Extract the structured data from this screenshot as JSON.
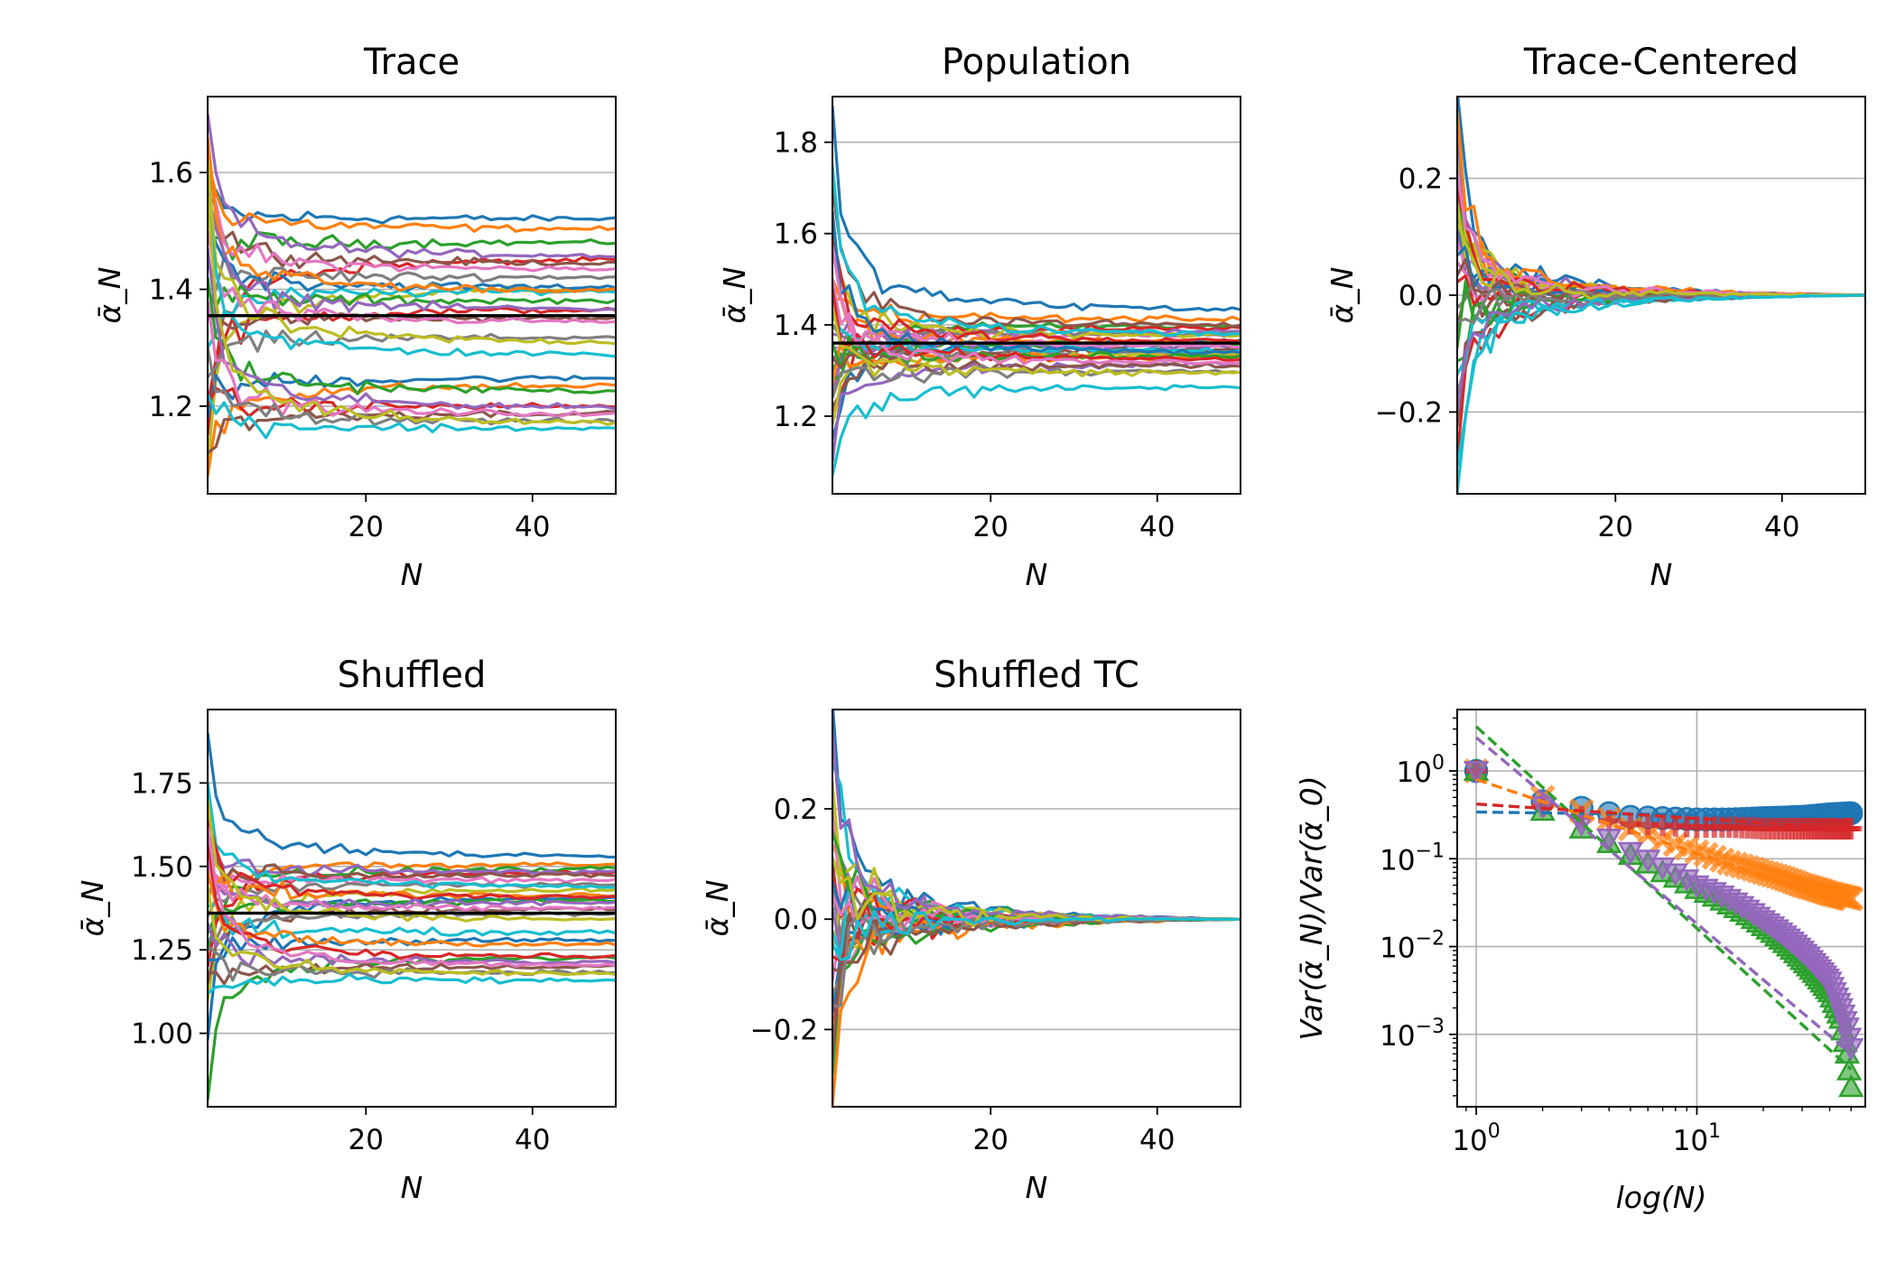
{
  "figure": {
    "layout": "2x3 grid of small-multiple line plots"
  },
  "colors": {
    "series": [
      "#1f77b4",
      "#ff7f0e",
      "#2ca02c",
      "#d62728",
      "#9467bd",
      "#8c564b",
      "#e377c2",
      "#7f7f7f",
      "#bcbd22",
      "#17becf"
    ],
    "reference_line": "#000000",
    "grid": "#b0b0b0"
  },
  "chart_data": [
    {
      "type": "line",
      "title": "Trace",
      "xlabel": "N",
      "ylabel": "ᾱ_N",
      "xlim": [
        1,
        50
      ],
      "ylim": [
        1.05,
        1.73
      ],
      "x_ticks": [
        20,
        40
      ],
      "x_tick_labels": [
        "20",
        "40"
      ],
      "y_ticks": [
        1.2,
        1.4,
        1.6
      ],
      "y_tick_labels": [
        "1.2",
        "1.4",
        "1.6"
      ],
      "grid": "y",
      "n_series": 30,
      "reference_line_y": 1.355,
      "series_final_values": [
        1.52,
        1.5,
        1.48,
        1.46,
        1.45,
        1.44,
        1.43,
        1.42,
        1.41,
        1.4,
        1.4,
        1.39,
        1.38,
        1.37,
        1.36,
        1.35,
        1.34,
        1.32,
        1.3,
        1.28,
        1.25,
        1.24,
        1.22,
        1.2,
        1.19,
        1.19,
        1.18,
        1.17,
        1.16,
        1.16
      ],
      "series_initial_values": [
        1.55,
        1.62,
        1.48,
        1.15,
        1.7,
        1.6,
        1.58,
        1.45,
        1.1,
        1.3,
        1.52,
        1.66,
        1.4,
        1.2,
        1.57,
        1.35,
        1.5,
        1.25,
        1.62,
        1.55,
        1.18,
        1.08,
        1.42,
        1.2,
        1.47,
        1.12,
        1.38,
        1.3,
        1.56,
        1.22
      ]
    },
    {
      "type": "line",
      "title": "Population",
      "xlabel": "N",
      "ylabel": "ᾱ_N",
      "xlim": [
        1,
        50
      ],
      "ylim": [
        1.03,
        1.9
      ],
      "x_ticks": [
        20,
        40
      ],
      "x_tick_labels": [
        "20",
        "40"
      ],
      "y_ticks": [
        1.2,
        1.4,
        1.6,
        1.8
      ],
      "y_tick_labels": [
        "1.2",
        "1.4",
        "1.6",
        "1.8"
      ],
      "grid": "y",
      "n_series": 30,
      "reference_line_y": 1.36,
      "series_final_values": [
        1.42,
        1.41,
        1.4,
        1.4,
        1.39,
        1.39,
        1.38,
        1.38,
        1.37,
        1.37,
        1.37,
        1.36,
        1.36,
        1.36,
        1.35,
        1.35,
        1.35,
        1.34,
        1.34,
        1.34,
        1.33,
        1.33,
        1.33,
        1.32,
        1.32,
        1.31,
        1.31,
        1.3,
        1.29,
        1.27
      ],
      "series_initial_values": [
        1.88,
        1.5,
        1.3,
        1.2,
        1.25,
        1.7,
        1.35,
        1.4,
        1.55,
        1.75,
        1.15,
        1.45,
        1.28,
        1.6,
        1.38,
        1.22,
        1.5,
        1.32,
        1.18,
        1.42,
        1.65,
        1.27,
        1.36,
        1.48,
        1.1,
        1.33,
        1.57,
        1.24,
        1.44,
        1.07
      ]
    },
    {
      "type": "line",
      "title": "Trace-Centered",
      "xlabel": "N",
      "ylabel": "ᾱ_N",
      "xlim": [
        1,
        50
      ],
      "ylim": [
        -0.34,
        0.34
      ],
      "x_ticks": [
        20,
        40
      ],
      "x_tick_labels": [
        "20",
        "40"
      ],
      "y_ticks": [
        -0.2,
        0.0,
        0.2
      ],
      "y_tick_labels": [
        "−0.2",
        "0.0",
        "0.2"
      ],
      "grid": "y",
      "n_series": 30,
      "series_final_values": [
        0,
        0,
        0,
        0,
        0,
        0,
        0,
        0,
        0,
        0,
        0,
        0,
        0,
        0,
        0,
        0,
        0,
        0,
        0,
        0,
        0,
        0,
        0,
        0,
        0,
        0,
        0,
        0,
        0,
        0
      ],
      "series_initial_values": [
        0.31,
        0.2,
        0.15,
        -0.25,
        0.1,
        -0.05,
        0.05,
        -0.15,
        0.22,
        -0.3,
        0.12,
        0.18,
        -0.1,
        0.02,
        0.25,
        -0.2,
        0.08,
        -0.02,
        0.14,
        -0.12,
        0.06,
        0.28,
        -0.08,
        0.16,
        -0.18,
        0.03,
        0.19,
        -0.04,
        0.11,
        -0.26
      ]
    },
    {
      "type": "line",
      "title": "Shuffled",
      "xlabel": "N",
      "ylabel": "ᾱ_N",
      "xlim": [
        1,
        50
      ],
      "ylim": [
        0.78,
        1.97
      ],
      "x_ticks": [
        20,
        40
      ],
      "x_tick_labels": [
        "20",
        "40"
      ],
      "y_ticks": [
        1.0,
        1.25,
        1.5,
        1.75
      ],
      "y_tick_labels": [
        "1.00",
        "1.25",
        "1.50",
        "1.75"
      ],
      "grid": "y",
      "n_series": 30,
      "reference_line_y": 1.36,
      "series_final_values": [
        1.52,
        1.51,
        1.5,
        1.49,
        1.48,
        1.47,
        1.46,
        1.45,
        1.44,
        1.43,
        1.42,
        1.41,
        1.4,
        1.4,
        1.39,
        1.38,
        1.37,
        1.36,
        1.33,
        1.3,
        1.28,
        1.26,
        1.24,
        1.22,
        1.21,
        1.2,
        1.19,
        1.18,
        1.17,
        1.16
      ],
      "series_initial_values": [
        1.9,
        1.4,
        1.25,
        1.2,
        1.6,
        1.55,
        1.45,
        1.35,
        1.1,
        1.75,
        0.98,
        1.5,
        1.3,
        1.65,
        1.42,
        1.15,
        1.52,
        1.28,
        1.7,
        1.38,
        1.22,
        1.48,
        0.8,
        1.58,
        1.33,
        1.18,
        1.62,
        1.26,
        1.44,
        1.12
      ]
    },
    {
      "type": "line",
      "title": "Shuffled TC",
      "xlabel": "N",
      "ylabel": "ᾱ_N",
      "xlim": [
        1,
        50
      ],
      "ylim": [
        -0.34,
        0.38
      ],
      "x_ticks": [
        20,
        40
      ],
      "x_tick_labels": [
        "20",
        "40"
      ],
      "y_ticks": [
        -0.2,
        0.0,
        0.2
      ],
      "y_tick_labels": [
        "−0.2",
        "0.0",
        "0.2"
      ],
      "grid": "y",
      "n_series": 30,
      "series_final_values": [
        0,
        0,
        0,
        0,
        0,
        0,
        0,
        0,
        0,
        0,
        0,
        0,
        0,
        0,
        0,
        0,
        0,
        0,
        0,
        0,
        0,
        0,
        0,
        0,
        0,
        0,
        0,
        0,
        0,
        0
      ],
      "series_initial_values": [
        0.35,
        -0.3,
        0.2,
        -0.2,
        0.15,
        0.1,
        -0.1,
        0.05,
        -0.05,
        0.25,
        -0.15,
        0.12,
        -0.25,
        0.08,
        0.02,
        -0.08,
        0.18,
        -0.12,
        0.22,
        -0.02,
        0.06,
        -0.18,
        0.14,
        -0.06,
        0.3,
        -0.22,
        0.04,
        -0.14,
        0.1,
        -0.04
      ]
    },
    {
      "type": "scatter",
      "title": "",
      "xlabel": "log(N)",
      "ylabel": "Var(ᾱ_N)/Var(ᾱ_0)",
      "x_scale": "log",
      "y_scale": "log",
      "xlim": [
        0.82,
        58
      ],
      "ylim": [
        0.00015,
        5
      ],
      "x_ticks": [
        1,
        10
      ],
      "x_tick_labels": [
        {
          "base": "10",
          "exp": "0"
        },
        {
          "base": "10",
          "exp": "1"
        }
      ],
      "y_ticks": [
        0.001,
        0.01,
        0.1,
        1
      ],
      "y_tick_labels": [
        {
          "base": "10",
          "exp": "−3"
        },
        {
          "base": "10",
          "exp": "−2"
        },
        {
          "base": "10",
          "exp": "−1"
        },
        {
          "base": "10",
          "exp": "0"
        }
      ],
      "grid": "both",
      "series": [
        {
          "marker": "circle",
          "color": "#1f77b4",
          "x": [
            1,
            2,
            3,
            4,
            5,
            7,
            10,
            14,
            20,
            30,
            40,
            50
          ],
          "y": [
            1.0,
            0.45,
            0.38,
            0.33,
            0.3,
            0.29,
            0.28,
            0.28,
            0.29,
            0.3,
            0.32,
            0.33
          ],
          "fit": {
            "x": [
              1,
              50
            ],
            "y": [
              0.34,
              0.3
            ]
          }
        },
        {
          "marker": "x",
          "color": "#ff7f0e",
          "x": [
            1,
            2,
            3,
            4,
            5,
            7,
            10,
            14,
            20,
            30,
            40,
            50
          ],
          "y": [
            1.0,
            0.5,
            0.35,
            0.28,
            0.22,
            0.16,
            0.12,
            0.09,
            0.07,
            0.05,
            0.04,
            0.035
          ],
          "fit": {
            "x": [
              1,
              50
            ],
            "y": [
              0.8,
              0.03
            ]
          }
        },
        {
          "marker": "triangle-up",
          "color": "#2ca02c",
          "x": [
            1,
            2,
            3,
            4,
            5,
            7,
            10,
            14,
            20,
            30,
            40,
            45,
            48,
            50
          ],
          "y": [
            1.0,
            0.35,
            0.22,
            0.15,
            0.11,
            0.07,
            0.045,
            0.03,
            0.017,
            0.007,
            0.003,
            0.0015,
            0.0006,
            0.00025
          ],
          "fit": {
            "x": [
              1,
              50
            ],
            "y": [
              3.2,
              0.0004
            ]
          }
        },
        {
          "marker": "plus",
          "color": "#d62728",
          "x": [
            1,
            2,
            3,
            4,
            5,
            7,
            10,
            14,
            20,
            30,
            40,
            50
          ],
          "y": [
            1.0,
            0.4,
            0.3,
            0.27,
            0.25,
            0.24,
            0.23,
            0.23,
            0.22,
            0.22,
            0.22,
            0.22
          ],
          "fit": {
            "x": [
              1,
              50
            ],
            "y": [
              0.42,
              0.22
            ]
          }
        },
        {
          "marker": "triangle-down",
          "color": "#9467bd",
          "x": [
            1,
            2,
            3,
            4,
            5,
            7,
            10,
            14,
            20,
            30,
            40,
            45,
            48,
            50
          ],
          "y": [
            1.0,
            0.4,
            0.25,
            0.17,
            0.12,
            0.08,
            0.05,
            0.035,
            0.02,
            0.009,
            0.004,
            0.002,
            0.0012,
            0.0007
          ],
          "fit": {
            "x": [
              1,
              50
            ],
            "y": [
              2.4,
              0.0006
            ]
          }
        }
      ]
    }
  ]
}
